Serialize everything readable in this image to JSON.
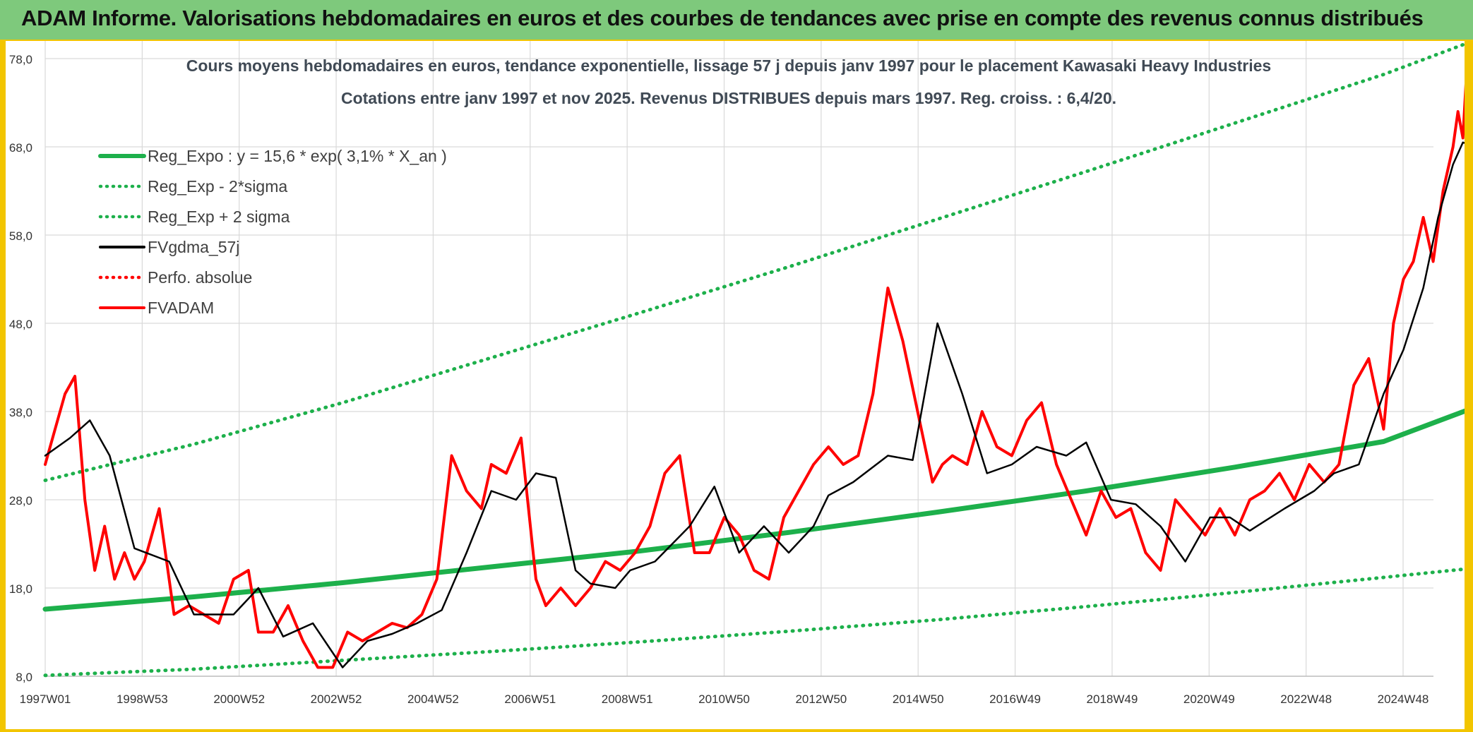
{
  "header": {
    "title": "ADAM Informe. Valorisations hebdomadaires en euros et des courbes de tendances avec prise en compte des revenus connus distribués"
  },
  "chart_data": {
    "type": "line",
    "title": "Cours moyens hebdomadaires en euros, tendance exponentielle, lissage 57 j depuis janv 1997 pour le placement Kawasaki Heavy Industries",
    "subtitle": "Cotations entre janv 1997 et nov 2025. Revenus DISTRIBUES depuis mars 1997. Reg. croiss. : 6,4/20.",
    "xlabel": "",
    "ylabel": "",
    "ylim": [
      8,
      80
    ],
    "y_ticks": [
      "8,0",
      "18,0",
      "28,0",
      "38,0",
      "48,0",
      "58,0",
      "68,0",
      "78,0"
    ],
    "x_ticks": [
      "1997W01",
      "1998W53",
      "2000W52",
      "2002W52",
      "2004W52",
      "2006W51",
      "2008W51",
      "2010W50",
      "2012W50",
      "2014W50",
      "2016W49",
      "2018W49",
      "2020W49",
      "2022W48",
      "2024W48"
    ],
    "grid": true,
    "legend_position": "top-left",
    "colors": {
      "reg": "#1db04b",
      "smooth": "#000000",
      "adam": "#ff0000",
      "perfo": "#ff0000"
    },
    "series": [
      {
        "name": "Reg_Expo : y = 15,6 * exp( 3,1% *  X_an )",
        "style": "solid",
        "color": "#1db04b",
        "x": [
          1997.0,
          2000.0,
          2003.0,
          2006.0,
          2009.0,
          2012.0,
          2015.0,
          2018.0,
          2021.0,
          2024.0,
          2025.9
        ],
        "values": [
          15.6,
          17.0,
          18.6,
          20.4,
          22.2,
          24.3,
          26.6,
          29.0,
          31.7,
          34.6,
          38.6
        ]
      },
      {
        "name": "Reg_Exp - 2*sigma",
        "style": "dotted",
        "color": "#1db04b",
        "x": [
          1997.0,
          2000.0,
          2003.0,
          2006.0,
          2009.0,
          2012.0,
          2015.0,
          2018.0,
          2021.0,
          2024.0,
          2025.9
        ],
        "values": [
          8.1,
          8.8,
          9.8,
          10.8,
          11.9,
          13.1,
          14.4,
          15.9,
          17.5,
          19.2,
          20.3
        ]
      },
      {
        "name": "Reg_Exp + 2 sigma",
        "style": "dotted",
        "color": "#1db04b",
        "x": [
          1997.0,
          2000.0,
          2003.0,
          2006.0,
          2009.0,
          2012.0,
          2015.0,
          2018.0,
          2021.0,
          2024.0,
          2025.9
        ],
        "values": [
          30.2,
          34.3,
          39.0,
          44.1,
          49.2,
          54.4,
          59.8,
          65.2,
          70.7,
          76.2,
          80.2
        ]
      },
      {
        "name": "FVgdma_57j",
        "style": "solid",
        "color": "#000000",
        "x": [
          1997.0,
          1997.5,
          1997.9,
          1998.3,
          1998.8,
          1999.5,
          2000.0,
          2000.8,
          2001.3,
          2001.8,
          2002.4,
          2003.0,
          2003.5,
          2004.0,
          2004.5,
          2005.0,
          2005.5,
          2006.0,
          2006.5,
          2006.9,
          2007.3,
          2007.7,
          2008.0,
          2008.5,
          2008.8,
          2009.3,
          2010.0,
          2010.5,
          2011.0,
          2011.5,
          2012.0,
          2012.5,
          2012.8,
          2013.3,
          2014.0,
          2014.5,
          2015.0,
          2015.5,
          2016.0,
          2016.5,
          2017.0,
          2017.6,
          2018.0,
          2018.5,
          2019.0,
          2019.5,
          2020.0,
          2020.5,
          2020.9,
          2021.3,
          2022.0,
          2022.6,
          2023.0,
          2023.5,
          2024.0,
          2024.4,
          2024.8,
          2025.1,
          2025.4,
          2025.6,
          2025.9
        ],
        "values": [
          33.0,
          35.0,
          37.0,
          33.0,
          22.5,
          21.0,
          15.0,
          15.0,
          18.0,
          12.5,
          14.0,
          9.0,
          12.0,
          12.8,
          14.0,
          15.5,
          22.0,
          29.0,
          28.0,
          31.0,
          30.5,
          20.0,
          18.5,
          18.0,
          20.0,
          21.0,
          25.0,
          29.5,
          22.0,
          25.0,
          22.0,
          25.0,
          28.5,
          30.0,
          33.0,
          32.5,
          48.0,
          40.0,
          31.0,
          32.0,
          34.0,
          33.0,
          34.5,
          28.0,
          27.5,
          25.0,
          21.0,
          26.0,
          26.0,
          24.5,
          27.0,
          29.0,
          31.0,
          32.0,
          40.0,
          45.0,
          52.0,
          60.0,
          66.0,
          68.5,
          68.0
        ]
      },
      {
        "name": "Perfo. absolue",
        "style": "dotted",
        "color": "#ff0000",
        "x": [],
        "values": []
      },
      {
        "name": "FVADAM",
        "style": "solid",
        "color": "#ff0000",
        "x": [
          1997.0,
          1997.2,
          1997.4,
          1997.6,
          1997.8,
          1998.0,
          1998.2,
          1998.4,
          1998.6,
          1998.8,
          1999.0,
          1999.3,
          1999.6,
          1999.9,
          2000.2,
          2000.5,
          2000.8,
          2001.1,
          2001.3,
          2001.6,
          2001.9,
          2002.2,
          2002.5,
          2002.8,
          2003.1,
          2003.4,
          2003.7,
          2004.0,
          2004.3,
          2004.6,
          2004.9,
          2005.2,
          2005.5,
          2005.8,
          2006.0,
          2006.3,
          2006.6,
          2006.9,
          2007.1,
          2007.4,
          2007.7,
          2008.0,
          2008.3,
          2008.6,
          2008.9,
          2009.2,
          2009.5,
          2009.8,
          2010.1,
          2010.4,
          2010.7,
          2011.0,
          2011.3,
          2011.6,
          2011.9,
          2012.2,
          2012.5,
          2012.8,
          2013.1,
          2013.4,
          2013.7,
          2014.0,
          2014.3,
          2014.6,
          2014.9,
          2015.1,
          2015.3,
          2015.6,
          2015.9,
          2016.2,
          2016.5,
          2016.8,
          2017.1,
          2017.4,
          2017.7,
          2018.0,
          2018.3,
          2018.6,
          2018.9,
          2019.2,
          2019.5,
          2019.8,
          2020.1,
          2020.4,
          2020.7,
          2021.0,
          2021.3,
          2021.6,
          2021.9,
          2022.2,
          2022.5,
          2022.8,
          2023.1,
          2023.4,
          2023.7,
          2024.0,
          2024.2,
          2024.4,
          2024.6,
          2024.8,
          2025.0,
          2025.2,
          2025.4,
          2025.5,
          2025.6,
          2025.7,
          2025.8,
          2025.9
        ],
        "values": [
          32.0,
          36.0,
          40.0,
          42.0,
          28.0,
          20.0,
          25.0,
          19.0,
          22.0,
          19.0,
          21.0,
          27.0,
          15.0,
          16.0,
          15.0,
          14.0,
          19.0,
          20.0,
          13.0,
          13.0,
          16.0,
          12.0,
          9.0,
          9.0,
          13.0,
          12.0,
          13.0,
          14.0,
          13.5,
          15.0,
          19.0,
          33.0,
          29.0,
          27.0,
          32.0,
          31.0,
          35.0,
          19.0,
          16.0,
          18.0,
          16.0,
          18.0,
          21.0,
          20.0,
          22.0,
          25.0,
          31.0,
          33.0,
          22.0,
          22.0,
          26.0,
          24.0,
          20.0,
          19.0,
          26.0,
          29.0,
          32.0,
          34.0,
          32.0,
          33.0,
          40.0,
          52.0,
          46.0,
          38.0,
          30.0,
          32.0,
          33.0,
          32.0,
          38.0,
          34.0,
          33.0,
          37.0,
          39.0,
          32.0,
          28.0,
          24.0,
          29.0,
          26.0,
          27.0,
          22.0,
          20.0,
          28.0,
          26.0,
          24.0,
          27.0,
          24.0,
          28.0,
          29.0,
          31.0,
          28.0,
          32.0,
          30.0,
          32.0,
          41.0,
          44.0,
          36.0,
          48.0,
          53.0,
          55.0,
          60.0,
          55.0,
          63.0,
          68.0,
          72.0,
          69.0,
          79.0,
          71.0,
          66.0
        ]
      }
    ]
  }
}
